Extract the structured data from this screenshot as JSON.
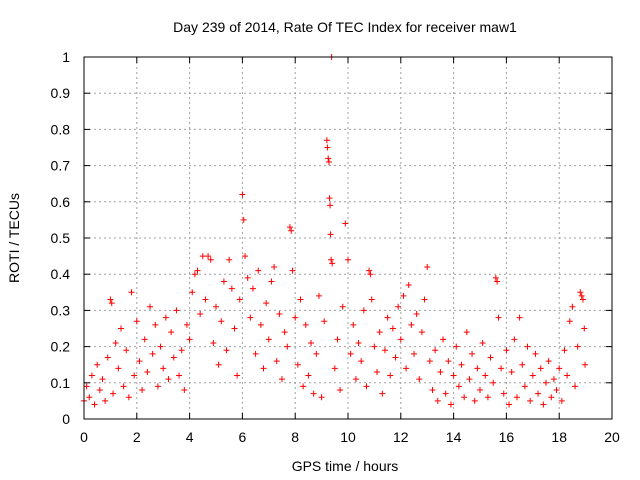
{
  "chart_data": {
    "type": "scatter",
    "title": "Day 239 of 2014, Rate Of TEC Index for receiver maw1",
    "xlabel": "GPS time / hours",
    "ylabel": "ROTI / TECUs",
    "xlim": [
      0,
      20
    ],
    "ylim": [
      0,
      1
    ],
    "x_ticks": [
      "0",
      "2",
      "4",
      "6",
      "8",
      "10",
      "12",
      "14",
      "16",
      "18",
      "20"
    ],
    "y_ticks": [
      "0",
      "0.1",
      "0.2",
      "0.3",
      "0.4",
      "0.5",
      "0.6",
      "0.7",
      "0.8",
      "0.9",
      "1"
    ],
    "grid": true,
    "marker": "+",
    "color": "#ff0000",
    "series": [
      {
        "name": "ROTI",
        "points": [
          [
            0.0,
            0.05
          ],
          [
            0.1,
            0.09
          ],
          [
            0.2,
            0.06
          ],
          [
            0.3,
            0.12
          ],
          [
            0.4,
            0.04
          ],
          [
            0.5,
            0.15
          ],
          [
            0.6,
            0.08
          ],
          [
            0.7,
            0.11
          ],
          [
            0.8,
            0.05
          ],
          [
            0.9,
            0.17
          ],
          [
            1.0,
            0.33
          ],
          [
            1.05,
            0.32
          ],
          [
            1.1,
            0.07
          ],
          [
            1.2,
            0.21
          ],
          [
            1.3,
            0.14
          ],
          [
            1.4,
            0.25
          ],
          [
            1.5,
            0.09
          ],
          [
            1.6,
            0.19
          ],
          [
            1.7,
            0.06
          ],
          [
            1.8,
            0.35
          ],
          [
            1.9,
            0.12
          ],
          [
            2.0,
            0.27
          ],
          [
            2.1,
            0.16
          ],
          [
            2.2,
            0.08
          ],
          [
            2.3,
            0.22
          ],
          [
            2.4,
            0.13
          ],
          [
            2.5,
            0.31
          ],
          [
            2.6,
            0.18
          ],
          [
            2.7,
            0.26
          ],
          [
            2.8,
            0.09
          ],
          [
            2.9,
            0.2
          ],
          [
            3.0,
            0.14
          ],
          [
            3.1,
            0.28
          ],
          [
            3.2,
            0.11
          ],
          [
            3.3,
            0.24
          ],
          [
            3.4,
            0.17
          ],
          [
            3.5,
            0.3
          ],
          [
            3.6,
            0.12
          ],
          [
            3.7,
            0.19
          ],
          [
            3.8,
            0.08
          ],
          [
            3.9,
            0.26
          ],
          [
            4.0,
            0.22
          ],
          [
            4.1,
            0.35
          ],
          [
            4.2,
            0.4
          ],
          [
            4.3,
            0.41
          ],
          [
            4.4,
            0.29
          ],
          [
            4.5,
            0.45
          ],
          [
            4.6,
            0.33
          ],
          [
            4.7,
            0.45
          ],
          [
            4.8,
            0.44
          ],
          [
            4.9,
            0.21
          ],
          [
            5.0,
            0.31
          ],
          [
            5.1,
            0.15
          ],
          [
            5.2,
            0.27
          ],
          [
            5.3,
            0.38
          ],
          [
            5.4,
            0.19
          ],
          [
            5.5,
            0.44
          ],
          [
            5.6,
            0.36
          ],
          [
            5.7,
            0.25
          ],
          [
            5.8,
            0.12
          ],
          [
            5.9,
            0.33
          ],
          [
            6.0,
            0.62
          ],
          [
            6.05,
            0.55
          ],
          [
            6.1,
            0.45
          ],
          [
            6.2,
            0.39
          ],
          [
            6.3,
            0.28
          ],
          [
            6.4,
            0.36
          ],
          [
            6.5,
            0.18
          ],
          [
            6.6,
            0.41
          ],
          [
            6.7,
            0.26
          ],
          [
            6.8,
            0.14
          ],
          [
            6.9,
            0.32
          ],
          [
            7.0,
            0.22
          ],
          [
            7.1,
            0.38
          ],
          [
            7.2,
            0.42
          ],
          [
            7.3,
            0.16
          ],
          [
            7.4,
            0.29
          ],
          [
            7.5,
            0.11
          ],
          [
            7.6,
            0.24
          ],
          [
            7.7,
            0.2
          ],
          [
            7.8,
            0.53
          ],
          [
            7.85,
            0.52
          ],
          [
            7.9,
            0.41
          ],
          [
            8.0,
            0.28
          ],
          [
            8.1,
            0.15
          ],
          [
            8.2,
            0.33
          ],
          [
            8.3,
            0.09
          ],
          [
            8.4,
            0.26
          ],
          [
            8.5,
            0.12
          ],
          [
            8.6,
            0.21
          ],
          [
            8.7,
            0.07
          ],
          [
            8.8,
            0.18
          ],
          [
            8.9,
            0.34
          ],
          [
            9.0,
            0.06
          ],
          [
            9.1,
            0.27
          ],
          [
            9.2,
            0.77
          ],
          [
            9.22,
            0.75
          ],
          [
            9.25,
            0.72
          ],
          [
            9.28,
            0.71
          ],
          [
            9.3,
            0.61
          ],
          [
            9.32,
            0.59
          ],
          [
            9.34,
            0.51
          ],
          [
            9.36,
            0.44
          ],
          [
            9.38,
            1.0
          ],
          [
            9.4,
            0.43
          ],
          [
            9.5,
            0.14
          ],
          [
            9.6,
            0.22
          ],
          [
            9.7,
            0.08
          ],
          [
            9.8,
            0.31
          ],
          [
            9.9,
            0.54
          ],
          [
            10.0,
            0.44
          ],
          [
            10.1,
            0.18
          ],
          [
            10.2,
            0.26
          ],
          [
            10.3,
            0.11
          ],
          [
            10.4,
            0.21
          ],
          [
            10.5,
            0.16
          ],
          [
            10.6,
            0.3
          ],
          [
            10.7,
            0.09
          ],
          [
            10.8,
            0.41
          ],
          [
            10.85,
            0.4
          ],
          [
            10.9,
            0.33
          ],
          [
            11.0,
            0.2
          ],
          [
            11.1,
            0.13
          ],
          [
            11.2,
            0.24
          ],
          [
            11.3,
            0.07
          ],
          [
            11.4,
            0.19
          ],
          [
            11.5,
            0.28
          ],
          [
            11.6,
            0.12
          ],
          [
            11.7,
            0.25
          ],
          [
            11.8,
            0.17
          ],
          [
            11.9,
            0.31
          ],
          [
            12.0,
            0.22
          ],
          [
            12.1,
            0.34
          ],
          [
            12.2,
            0.14
          ],
          [
            12.3,
            0.37
          ],
          [
            12.4,
            0.26
          ],
          [
            12.5,
            0.18
          ],
          [
            12.6,
            0.29
          ],
          [
            12.7,
            0.11
          ],
          [
            12.8,
            0.24
          ],
          [
            12.9,
            0.33
          ],
          [
            13.0,
            0.42
          ],
          [
            13.1,
            0.16
          ],
          [
            13.2,
            0.08
          ],
          [
            13.3,
            0.19
          ],
          [
            13.4,
            0.05
          ],
          [
            13.5,
            0.13
          ],
          [
            13.6,
            0.22
          ],
          [
            13.7,
            0.07
          ],
          [
            13.8,
            0.16
          ],
          [
            13.9,
            0.04
          ],
          [
            14.0,
            0.12
          ],
          [
            14.1,
            0.2
          ],
          [
            14.2,
            0.09
          ],
          [
            14.3,
            0.15
          ],
          [
            14.4,
            0.06
          ],
          [
            14.5,
            0.24
          ],
          [
            14.6,
            0.11
          ],
          [
            14.7,
            0.18
          ],
          [
            14.8,
            0.05
          ],
          [
            14.9,
            0.14
          ],
          [
            15.0,
            0.08
          ],
          [
            15.1,
            0.21
          ],
          [
            15.2,
            0.12
          ],
          [
            15.3,
            0.06
          ],
          [
            15.4,
            0.17
          ],
          [
            15.5,
            0.1
          ],
          [
            15.6,
            0.39
          ],
          [
            15.65,
            0.38
          ],
          [
            15.7,
            0.28
          ],
          [
            15.8,
            0.14
          ],
          [
            15.9,
            0.07
          ],
          [
            16.0,
            0.19
          ],
          [
            16.1,
            0.04
          ],
          [
            16.2,
            0.13
          ],
          [
            16.3,
            0.22
          ],
          [
            16.4,
            0.06
          ],
          [
            16.5,
            0.28
          ],
          [
            16.6,
            0.15
          ],
          [
            16.7,
            0.09
          ],
          [
            16.8,
            0.2
          ],
          [
            16.9,
            0.05
          ],
          [
            17.0,
            0.12
          ],
          [
            17.1,
            0.18
          ],
          [
            17.2,
            0.07
          ],
          [
            17.3,
            0.14
          ],
          [
            17.4,
            0.04
          ],
          [
            17.5,
            0.1
          ],
          [
            17.6,
            0.16
          ],
          [
            17.7,
            0.06
          ],
          [
            17.8,
            0.11
          ],
          [
            17.9,
            0.08
          ],
          [
            18.0,
            0.14
          ],
          [
            18.1,
            0.05
          ],
          [
            18.2,
            0.19
          ],
          [
            18.3,
            0.12
          ],
          [
            18.4,
            0.27
          ],
          [
            18.5,
            0.31
          ],
          [
            18.6,
            0.09
          ],
          [
            18.7,
            0.2
          ],
          [
            18.8,
            0.35
          ],
          [
            18.85,
            0.34
          ],
          [
            18.9,
            0.33
          ],
          [
            18.95,
            0.25
          ],
          [
            18.98,
            0.15
          ]
        ]
      }
    ]
  }
}
